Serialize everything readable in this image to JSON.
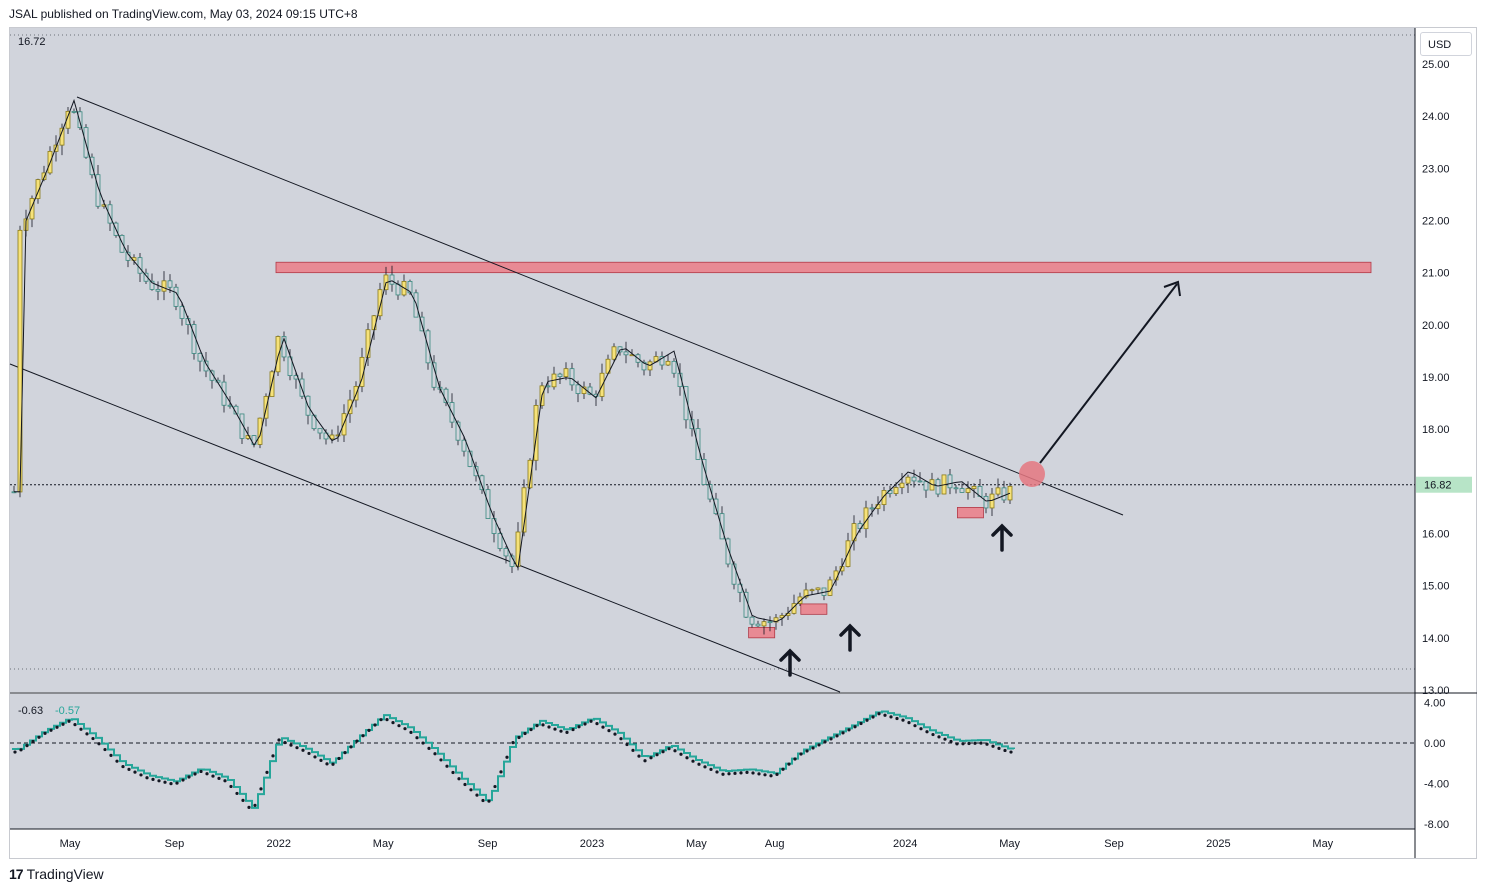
{
  "header": {
    "publisher": "JSAL published on TradingView.com, May 03, 2024 09:15 UTC+8"
  },
  "footer": {
    "brand": "TradingView",
    "logo_icon": "tradingview-logo-icon"
  },
  "toolbar": {
    "currency": "USD"
  },
  "colors": {
    "background": "#d1d4dc",
    "up_candle": "#f6e27a",
    "down_candle": "#d1d4dc",
    "candle_outline": "#131722",
    "zone_fill": "#e88a94",
    "target_circle": "#e57780",
    "oscillator_line": "#26a69a",
    "last_price_badge": "#b7e4c7"
  },
  "chart_data": [
    {
      "type": "candlestick",
      "title": "",
      "ohlc_legend": "16.72",
      "last_price_label": "16.82",
      "last_price": 16.82,
      "ylim": [
        13.0,
        25.5
      ],
      "y_ticks": [
        "25.00",
        "24.00",
        "23.00",
        "22.00",
        "21.00",
        "20.00",
        "19.00",
        "18.00",
        "17.00",
        "16.00",
        "15.00",
        "14.00",
        "13.00"
      ],
      "x_ticks": [
        "May",
        "Sep",
        "2022",
        "May",
        "Sep",
        "2023",
        "May",
        "Aug",
        "2024",
        "May",
        "Sep",
        "2025",
        "May"
      ],
      "grid": false,
      "series": [
        {
          "kind": "price_path",
          "dates": [
            "2021-03",
            "2021-04",
            "2021-05",
            "2021-06",
            "2021-07",
            "2021-08",
            "2021-09",
            "2021-10",
            "2021-11",
            "2021-12",
            "2022-01",
            "2022-02",
            "2022-03",
            "2022-04",
            "2022-05",
            "2022-06",
            "2022-07",
            "2022-08",
            "2022-09",
            "2022-10",
            "2022-11",
            "2022-12",
            "2023-01",
            "2023-02",
            "2023-03",
            "2023-04",
            "2023-05",
            "2023-06",
            "2023-07",
            "2023-08",
            "2023-09",
            "2023-10",
            "2023-11",
            "2023-12",
            "2024-01",
            "2024-02",
            "2024-03",
            "2024-04",
            "2024-05"
          ],
          "values": [
            21.8,
            23.0,
            24.3,
            22.5,
            21.4,
            20.8,
            20.6,
            19.3,
            18.5,
            17.6,
            19.8,
            18.4,
            17.7,
            18.9,
            20.9,
            20.6,
            18.8,
            17.8,
            16.4,
            15.3,
            18.9,
            19.0,
            18.6,
            19.6,
            19.2,
            19.5,
            17.5,
            15.8,
            14.4,
            14.3,
            14.8,
            14.9,
            16.0,
            16.7,
            17.2,
            16.9,
            17.0,
            16.6,
            16.8
          ]
        }
      ],
      "annotations": [
        {
          "kind": "resistance_zone",
          "from": "2021-12",
          "to": "2025-06",
          "price_low": 21.0,
          "price_high": 21.2
        },
        {
          "kind": "support_zone",
          "from": "2023-07",
          "to": "2023-08",
          "price_low": 14.0,
          "price_high": 14.2
        },
        {
          "kind": "support_zone",
          "from": "2023-09",
          "to": "2023-10",
          "price_low": 14.45,
          "price_high": 14.65
        },
        {
          "kind": "support_zone",
          "from": "2024-03",
          "to": "2024-04",
          "price_low": 16.3,
          "price_high": 16.5
        },
        {
          "kind": "descending_channel_upper",
          "from_date": "2021-05",
          "from_price": 24.4,
          "to_date": "2024-06",
          "to_price": 16.4
        },
        {
          "kind": "descending_channel_lower",
          "from_date": "2021-02",
          "from_price": 19.3,
          "to_date": "2023-09",
          "to_price": 13.0
        },
        {
          "kind": "projection_arrow",
          "from_date": "2024-05",
          "from_price": 17.2,
          "to_date": "2024-10",
          "to_price": 20.8
        },
        {
          "kind": "up_arrow",
          "date": "2023-08",
          "price": 13.4
        },
        {
          "kind": "up_arrow",
          "date": "2023-10",
          "price": 13.8
        },
        {
          "kind": "up_arrow",
          "date": "2024-04",
          "price": 15.8
        }
      ]
    },
    {
      "type": "line",
      "title": "",
      "legend_values": [
        "-0.63",
        "-0.57"
      ],
      "ylim": [
        -8.5,
        4.5
      ],
      "y_ticks": [
        "4.00",
        "0.00",
        "-4.00",
        "-8.00"
      ],
      "zero_line": true,
      "series": [
        {
          "kind": "oscillator",
          "dates": [
            "2021-03",
            "2021-04",
            "2021-05",
            "2021-06",
            "2021-07",
            "2021-08",
            "2021-09",
            "2021-10",
            "2021-11",
            "2021-12",
            "2022-01",
            "2022-02",
            "2022-03",
            "2022-04",
            "2022-05",
            "2022-06",
            "2022-07",
            "2022-08",
            "2022-09",
            "2022-10",
            "2022-11",
            "2022-12",
            "2023-01",
            "2023-02",
            "2023-03",
            "2023-04",
            "2023-05",
            "2023-06",
            "2023-07",
            "2023-08",
            "2023-09",
            "2023-10",
            "2023-11",
            "2023-12",
            "2024-01",
            "2024-02",
            "2024-03",
            "2024-04",
            "2024-05"
          ],
          "values": [
            -0.6,
            1.2,
            2.5,
            0.5,
            -2.0,
            -3.2,
            -3.8,
            -2.5,
            -3.5,
            -6.5,
            0.6,
            -0.5,
            -2.0,
            0.5,
            2.8,
            1.5,
            -0.8,
            -3.5,
            -5.8,
            0.5,
            2.2,
            1.3,
            2.5,
            1.0,
            -1.5,
            -0.2,
            -1.7,
            -2.8,
            -2.6,
            -3.0,
            -0.8,
            0.5,
            1.8,
            3.2,
            2.5,
            1.2,
            0.2,
            0.3,
            -0.6
          ]
        }
      ]
    }
  ]
}
